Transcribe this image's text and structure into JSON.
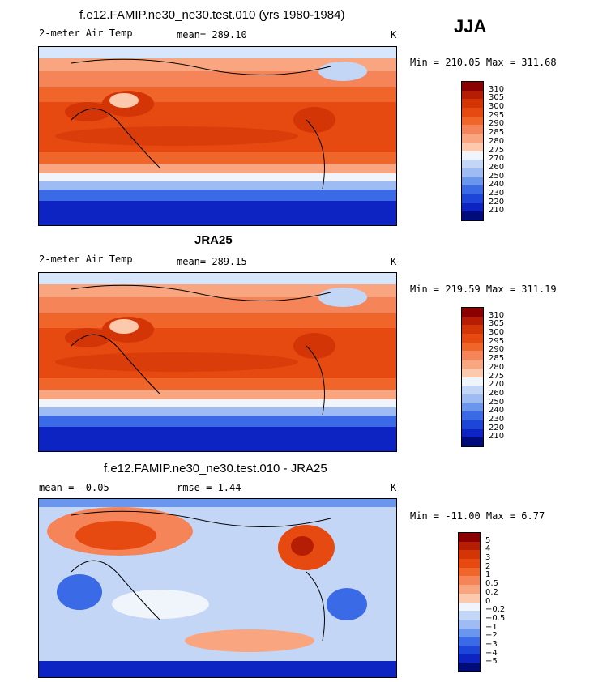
{
  "season": "JJA",
  "panels": [
    {
      "title": "f.e12.FAMIP.ne30_ne30.test.010 (yrs 1980-1984)",
      "left": "2-meter Air Temp",
      "center": "mean= 289.10",
      "units": "K",
      "minmax": "Min = 210.05 Max = 311.68"
    },
    {
      "title": "JRA25",
      "left": "2-meter Air Temp",
      "center": "mean= 289.15",
      "units": "K",
      "minmax": "Min = 219.59 Max = 311.19"
    },
    {
      "title": "f.e12.FAMIP.ne30_ne30.test.010 - JRA25",
      "left": "mean =   -0.05",
      "center": "rmse =    1.44",
      "units": "K",
      "minmax": "Min = -11.00 Max =   6.77"
    }
  ],
  "chart_data": [
    {
      "type": "heatmap",
      "title": "f.e12.FAMIP.ne30_ne30.test.010 (yrs 1980-1984)",
      "variable": "2-meter Air Temp",
      "mean": 289.1,
      "min": 210.05,
      "max": 311.68,
      "units": "K",
      "colorbar_levels": [
        "310",
        "305",
        "300",
        "295",
        "290",
        "285",
        "280",
        "275",
        "270",
        "260",
        "250",
        "240",
        "230",
        "220",
        "210"
      ],
      "colorbar_colors": [
        "#8b0000",
        "#b51d04",
        "#d33506",
        "#e64a10",
        "#f0652a",
        "#f58459",
        "#f9a680",
        "#fcc9ad",
        "#f0f4fb",
        "#c4d6f6",
        "#9fbbf3",
        "#6b96ee",
        "#3a6ae6",
        "#1d45d8",
        "#0d24c2",
        "#000c7a"
      ]
    },
    {
      "type": "heatmap",
      "title": "JRA25",
      "variable": "2-meter Air Temp",
      "mean": 289.15,
      "min": 219.59,
      "max": 311.19,
      "units": "K",
      "colorbar_levels": [
        "310",
        "305",
        "300",
        "295",
        "290",
        "285",
        "280",
        "275",
        "270",
        "260",
        "250",
        "240",
        "230",
        "220",
        "210"
      ],
      "colorbar_colors": [
        "#8b0000",
        "#b51d04",
        "#d33506",
        "#e64a10",
        "#f0652a",
        "#f58459",
        "#f9a680",
        "#fcc9ad",
        "#f0f4fb",
        "#c4d6f6",
        "#9fbbf3",
        "#6b96ee",
        "#3a6ae6",
        "#1d45d8",
        "#0d24c2",
        "#000c7a"
      ]
    },
    {
      "type": "heatmap",
      "title": "f.e12.FAMIP.ne30_ne30.test.010 - JRA25",
      "mean": -0.05,
      "rmse": 1.44,
      "min": -11.0,
      "max": 6.77,
      "units": "K",
      "colorbar_levels": [
        "5",
        "4",
        "3",
        "2",
        "1",
        "0.5",
        "0.2",
        "0",
        "−0.2",
        "−0.5",
        "−1",
        "−2",
        "−3",
        "−4",
        "−5"
      ],
      "colorbar_colors": [
        "#8b0000",
        "#b51d04",
        "#d33506",
        "#e64a10",
        "#f0652a",
        "#f58459",
        "#f9a680",
        "#fcc9ad",
        "#f0f4fb",
        "#c4d6f6",
        "#9fbbf3",
        "#6b96ee",
        "#3a6ae6",
        "#1d45d8",
        "#0d24c2",
        "#000c7a"
      ]
    }
  ]
}
